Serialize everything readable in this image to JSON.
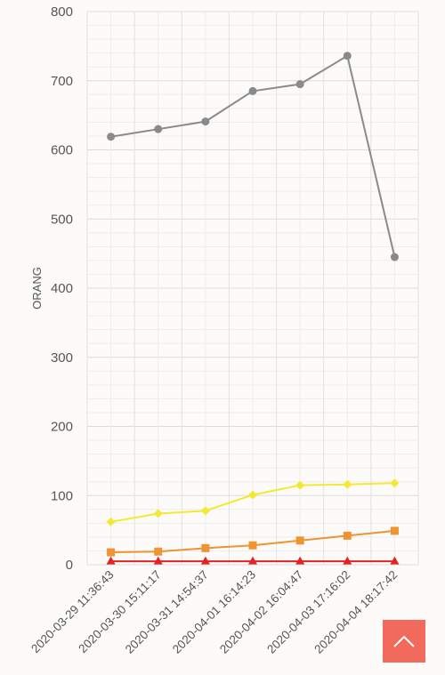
{
  "chart_data": {
    "type": "line",
    "ylabel": "ORANG",
    "ylim": [
      0,
      800
    ],
    "y_ticks": [
      0,
      100,
      200,
      300,
      400,
      500,
      600,
      700,
      800
    ],
    "grid": true,
    "categories": [
      "2020-03-29 11:36:43",
      "2020-03-30 15:11:17",
      "2020-03-31 14:54:37",
      "2020-04-01 16:14:23",
      "2020-04-02 16:04:47",
      "2020-04-03 17:16:02",
      "2020-04-04 18:17:42"
    ],
    "series": [
      {
        "color": "#8a8a8a",
        "marker": "circle",
        "values": [
          619,
          630,
          641,
          685,
          695,
          736,
          445
        ]
      },
      {
        "color": "#f3e932",
        "marker": "diamond",
        "values": [
          62,
          74,
          78,
          101,
          115,
          116,
          118
        ]
      },
      {
        "color": "#ef9432",
        "marker": "square",
        "values": [
          18,
          19,
          24,
          28,
          35,
          42,
          49
        ]
      },
      {
        "color": "#e52222",
        "marker": "triangle",
        "values": [
          5,
          5,
          5,
          5,
          5,
          5,
          5
        ]
      }
    ]
  },
  "scroll_top": {
    "icon": "chevron-up-icon",
    "color": "#f26a5b"
  }
}
